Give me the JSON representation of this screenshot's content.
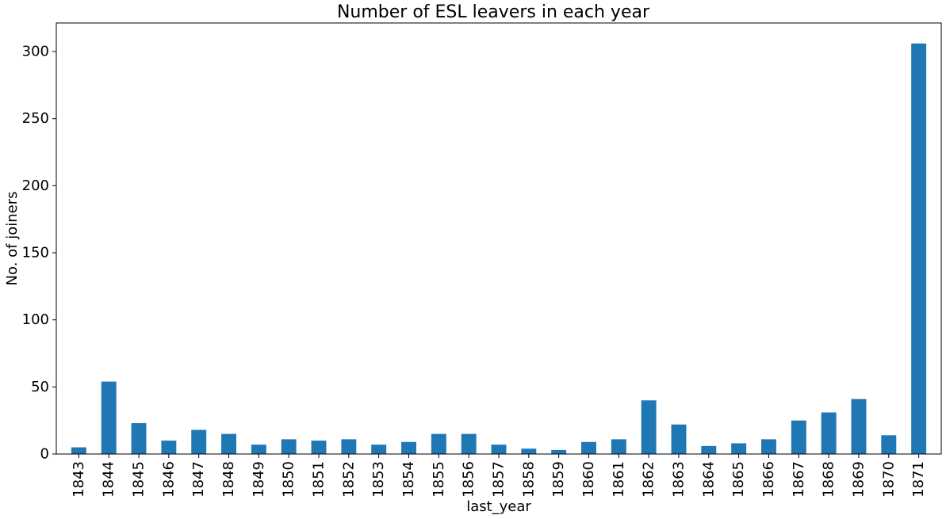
{
  "chart_data": {
    "type": "bar",
    "title": "Number of ESL leavers in each year",
    "xlabel": "last_year",
    "ylabel": "No. of joiners",
    "categories": [
      "1843",
      "1844",
      "1845",
      "1846",
      "1847",
      "1848",
      "1849",
      "1850",
      "1851",
      "1852",
      "1853",
      "1854",
      "1855",
      "1856",
      "1857",
      "1858",
      "1859",
      "1860",
      "1861",
      "1862",
      "1863",
      "1864",
      "1865",
      "1866",
      "1867",
      "1868",
      "1869",
      "1870",
      "1871"
    ],
    "values": [
      5,
      54,
      23,
      10,
      18,
      15,
      7,
      11,
      10,
      11,
      7,
      9,
      15,
      15,
      7,
      4,
      3,
      9,
      11,
      40,
      22,
      6,
      8,
      11,
      25,
      31,
      41,
      14,
      306
    ],
    "ylim": [
      0,
      321.3
    ],
    "yticks": [
      0,
      50,
      100,
      150,
      200,
      250,
      300
    ],
    "grid": false,
    "legend": "none",
    "bar_color": "#1f77b4"
  }
}
